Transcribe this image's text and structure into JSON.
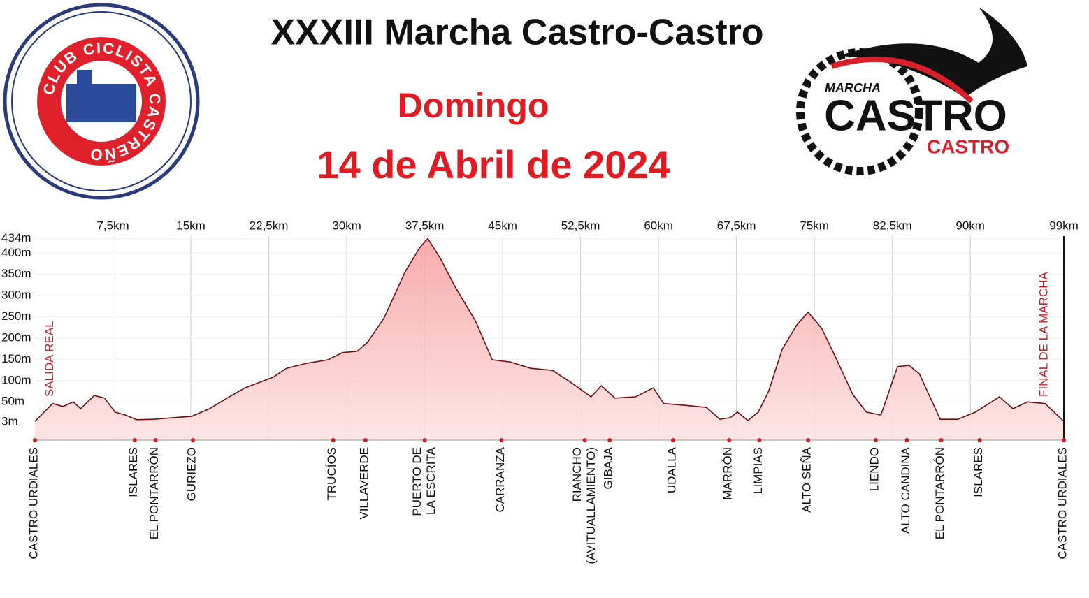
{
  "header": {
    "title": "XXXIII Marcha Castro-Castro",
    "day": "Domingo",
    "date": "14 de Abril de 2024"
  },
  "logos": {
    "club": "CLUB CICLISTA CASTREÑO",
    "marcha": "MARCHA",
    "castro_big": "CASTRO",
    "castro_small": "CASTRO"
  },
  "chart_data": {
    "type": "area",
    "color": "#f4a6a6",
    "line_color": "#6e0f0f",
    "x": [
      0,
      1.7,
      2.7,
      3.7,
      4.4,
      5.7,
      6.7,
      7.7,
      8.7,
      9.8,
      11.4,
      13.4,
      15.1,
      16.8,
      18.5,
      20.2,
      22.9,
      24.2,
      26.2,
      28.2,
      29.6,
      31.0,
      32.0,
      33.6,
      35.6,
      37.0,
      37.8,
      39.0,
      40.4,
      42.4,
      44.0,
      45.7,
      47.7,
      49.8,
      51.8,
      53.5,
      54.5,
      55.8,
      57.8,
      59.5,
      60.5,
      62.5,
      64.6,
      65.9,
      66.9,
      67.6,
      68.6,
      69.6,
      70.6,
      71.9,
      73.3,
      74.4,
      75.7,
      77.0,
      78.7,
      80.0,
      81.4,
      83.0,
      84.1,
      85.1,
      87.1,
      88.8,
      90.5,
      92.8,
      94.1,
      95.5,
      97.2,
      99
    ],
    "values": [
      4,
      46,
      39,
      50,
      34,
      65,
      59,
      26,
      19,
      8,
      9,
      13,
      16,
      34,
      59,
      83,
      108,
      129,
      141,
      149,
      166,
      169,
      190,
      248,
      355,
      412,
      434,
      388,
      322,
      240,
      149,
      144,
      129,
      124,
      92,
      62,
      88,
      59,
      62,
      83,
      46,
      42,
      37,
      9,
      13,
      26,
      6,
      26,
      75,
      174,
      231,
      261,
      223,
      157,
      67,
      26,
      19,
      133,
      136,
      116,
      9,
      9,
      26,
      62,
      34,
      50,
      46,
      4
    ],
    "xlim": [
      0,
      99
    ],
    "ylim": [
      -40,
      440
    ],
    "xticks": [
      {
        "value": 7.5,
        "label": "7,5km"
      },
      {
        "value": 15,
        "label": "15km"
      },
      {
        "value": 22.5,
        "label": "22,5km"
      },
      {
        "value": 30,
        "label": "30km"
      },
      {
        "value": 37.5,
        "label": "37,5km"
      },
      {
        "value": 45,
        "label": "45km"
      },
      {
        "value": 52.5,
        "label": "52,5km"
      },
      {
        "value": 60,
        "label": "60km"
      },
      {
        "value": 67.5,
        "label": "67,5km"
      },
      {
        "value": 75,
        "label": "75km"
      },
      {
        "value": 82.5,
        "label": "82,5km"
      },
      {
        "value": 90,
        "label": "90km"
      },
      {
        "value": 99,
        "label": "99km"
      }
    ],
    "yticks": [
      {
        "value": 3,
        "label": "3m"
      },
      {
        "value": 50,
        "label": "50m"
      },
      {
        "value": 100,
        "label": "100m"
      },
      {
        "value": 150,
        "label": "150m"
      },
      {
        "value": 200,
        "label": "200m"
      },
      {
        "value": 250,
        "label": "250m"
      },
      {
        "value": 300,
        "label": "300m"
      },
      {
        "value": 350,
        "label": "350m"
      },
      {
        "value": 400,
        "label": "400m"
      },
      {
        "value": 434,
        "label": "434m"
      }
    ],
    "grid": true,
    "places": [
      {
        "x": 0,
        "lines": [
          "CASTRO URDIALES"
        ]
      },
      {
        "x": 9.6,
        "lines": [
          "ISLARES"
        ]
      },
      {
        "x": 11.6,
        "lines": [
          "EL PONTARRÓN"
        ]
      },
      {
        "x": 15.2,
        "lines": [
          "GURIEZO"
        ]
      },
      {
        "x": 28.7,
        "lines": [
          "TRUCÍOS"
        ]
      },
      {
        "x": 31.8,
        "lines": [
          "VILLAVERDE"
        ]
      },
      {
        "x": 37.5,
        "lines": [
          "PUERTO DE",
          "LA ESCRITA"
        ]
      },
      {
        "x": 44.9,
        "lines": [
          "CARRANZA"
        ]
      },
      {
        "x": 52.9,
        "lines": [
          "RIANCHO",
          "(AVITUALLAMIENTO)"
        ]
      },
      {
        "x": 55.3,
        "lines": [
          "GIBAJA"
        ]
      },
      {
        "x": 61.4,
        "lines": [
          "UDALLA"
        ]
      },
      {
        "x": 66.8,
        "lines": [
          "MARRÓN"
        ]
      },
      {
        "x": 69.7,
        "lines": [
          "LIMPIAS"
        ]
      },
      {
        "x": 74.4,
        "lines": [
          "ALTO SEÑA"
        ]
      },
      {
        "x": 80.9,
        "lines": [
          "LIENDO"
        ]
      },
      {
        "x": 83.9,
        "lines": [
          "ALTO CANDINA"
        ]
      },
      {
        "x": 87.2,
        "lines": [
          "EL PONTARRÓN"
        ]
      },
      {
        "x": 90.9,
        "lines": [
          "ISLARES"
        ]
      },
      {
        "x": 99,
        "lines": [
          "CASTRO URDIALES"
        ]
      }
    ],
    "annotations": [
      {
        "x": 1.7,
        "text": "SALIDA REAL"
      },
      {
        "x": 97.4,
        "text": "FINAL DE LA MARCHA"
      }
    ]
  }
}
